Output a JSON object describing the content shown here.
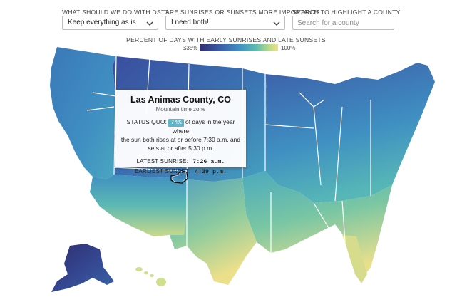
{
  "controls": {
    "dst": {
      "label": "WHAT SHOULD WE DO WITH DST?",
      "value": "Keep everything as is"
    },
    "preference": {
      "label": "ARE SUNRISES OR SUNSETS MORE IMPORTANT?",
      "value": "I need both!"
    },
    "search": {
      "label": "SEARCH TO HIGHLIGHT A COUNTY",
      "placeholder": "Search for a county"
    }
  },
  "legend": {
    "title": "PERCENT OF DAYS WITH EARLY SUNRISES AND LATE SUNSETS",
    "min": "≤35%",
    "max": "100%",
    "colors": [
      "#2e2d6e",
      "#3a5ba6",
      "#3f8fc2",
      "#5cbcb0",
      "#b6d88a",
      "#f0e08a"
    ]
  },
  "tooltip": {
    "county": "Las Animas County, CO",
    "timezone": "Mountain time zone",
    "status_prefix": "STATUS QUO:",
    "percent": "74%",
    "percent_value": 74,
    "description_1": "of days in the year where",
    "description_2": "the sun both rises at or before 7:30 a.m. and",
    "description_3": "sets at or after 5:30 p.m.",
    "sunrise_label": "LATEST SUNRISE:",
    "sunrise_value": "7:26 a.m.",
    "sunset_label": "EARLIEST SUNSET:",
    "sunset_value": "4:39 p.m."
  }
}
